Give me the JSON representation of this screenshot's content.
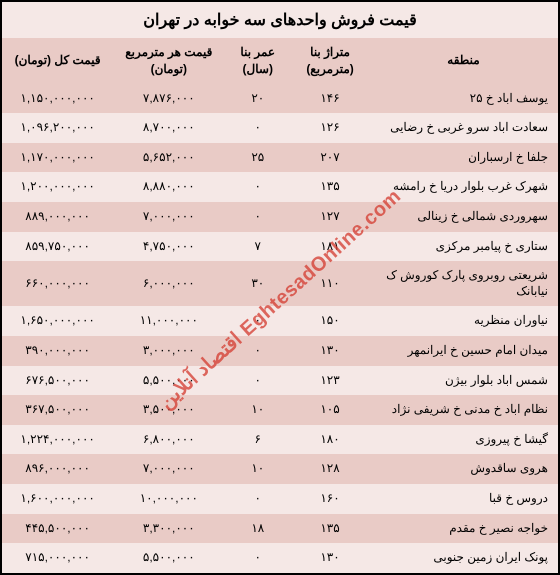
{
  "title": "قیمت فروش واحدهای سه خوابه در تهران",
  "watermark": "EghtesadOnline.com اقتصاد آنلاین",
  "colors": {
    "row_odd": "#e9cbc6",
    "row_even": "#f5e8e6",
    "border": "#000000",
    "text": "#000000",
    "watermark": "#d43a2f",
    "background": "#ffffff"
  },
  "typography": {
    "title_fontsize": 16,
    "header_fontsize": 12,
    "cell_fontsize": 12,
    "font_family": "Tahoma"
  },
  "columns": [
    {
      "key": "region",
      "label": "منطقه",
      "width_pct": 34,
      "align": "right"
    },
    {
      "key": "area",
      "label": "متراژ بنا\n(مترمربع)",
      "width_pct": 14,
      "align": "center"
    },
    {
      "key": "age",
      "label": "عمر بنا\n(سال)",
      "width_pct": 12,
      "align": "center"
    },
    {
      "key": "ppm",
      "label": "قیمت هر مترمربع\n(تومان)",
      "width_pct": 20,
      "align": "center"
    },
    {
      "key": "total",
      "label": "قیمت کل (تومان)",
      "width_pct": 20,
      "align": "center"
    }
  ],
  "rows": [
    {
      "region": "یوسف اباد خ ۲۵",
      "area": "۱۴۶",
      "age": "۲۰",
      "ppm": "۷,۸۷۶,۰۰۰",
      "total": "۱,۱۵۰,۰۰۰,۰۰۰"
    },
    {
      "region": "سعادت اباد سرو غربی خ رضایی",
      "area": "۱۲۶",
      "age": "۰",
      "ppm": "۸,۷۰۰,۰۰۰",
      "total": "۱,۰۹۶,۲۰۰,۰۰۰"
    },
    {
      "region": "جلفا خ ارسباران",
      "area": "۲۰۷",
      "age": "۲۵",
      "ppm": "۵,۶۵۲,۰۰۰",
      "total": "۱,۱۷۰,۰۰۰,۰۰۰"
    },
    {
      "region": "شهرک غرب بلوار دریا خ رامشه",
      "area": "۱۳۵",
      "age": "۰",
      "ppm": "۸,۸۸۰,۰۰۰",
      "total": "۱,۲۰۰,۰۰۰,۰۰۰"
    },
    {
      "region": "سهروردی شمالی خ زینالی",
      "area": "۱۲۷",
      "age": "۰",
      "ppm": "۷,۰۰۰,۰۰۰",
      "total": "۸۸۹,۰۰۰,۰۰۰"
    },
    {
      "region": "ستاری خ پیامبر مرکزی",
      "area": "۱۸۱",
      "age": "۷",
      "ppm": "۴,۷۵۰,۰۰۰",
      "total": "۸۵۹,۷۵۰,۰۰۰"
    },
    {
      "region": "شریعتی روبروی پارک کوروش ک نیابانک",
      "area": "۱۱۰",
      "age": "۳۰",
      "ppm": "۶,۰۰۰,۰۰۰",
      "total": "۶۶۰,۰۰۰,۰۰۰"
    },
    {
      "region": "نیاوران منظریه",
      "area": "۱۵۰",
      "age": "۰",
      "ppm": "۱۱,۰۰۰,۰۰۰",
      "total": "۱,۶۵۰,۰۰۰,۰۰۰"
    },
    {
      "region": "میدان امام حسین خ ایرانمهر",
      "area": "۱۳۰",
      "age": "۰",
      "ppm": "۳,۰۰۰,۰۰۰",
      "total": "۳۹۰,۰۰۰,۰۰۰"
    },
    {
      "region": "شمس اباد بلوار بیژن",
      "area": "۱۲۳",
      "age": "۰",
      "ppm": "۵,۵۰۰,۰۰۰",
      "total": "۶۷۶,۵۰۰,۰۰۰"
    },
    {
      "region": "نظام اباد خ مدنی خ شریفی نژاد",
      "area": "۱۰۵",
      "age": "۱۰",
      "ppm": "۳,۵۰۰,۰۰۰",
      "total": "۳۶۷,۵۰۰,۰۰۰"
    },
    {
      "region": "گیشا خ پیروزی",
      "area": "۱۸۰",
      "age": "۶",
      "ppm": "۶,۸۰۰,۰۰۰",
      "total": "۱,۲۲۴,۰۰۰,۰۰۰"
    },
    {
      "region": "هروی ساقدوش",
      "area": "۱۲۸",
      "age": "۱۰",
      "ppm": "۷,۰۰۰,۰۰۰",
      "total": "۸۹۶,۰۰۰,۰۰۰"
    },
    {
      "region": "دروس خ قبا",
      "area": "۱۶۰",
      "age": "۰",
      "ppm": "۱۰,۰۰۰,۰۰۰",
      "total": "۱,۶۰۰,۰۰۰,۰۰۰"
    },
    {
      "region": "خواجه نصیر خ مقدم",
      "area": "۱۳۵",
      "age": "۱۸",
      "ppm": "۳,۳۰۰,۰۰۰",
      "total": "۴۴۵,۵۰۰,۰۰۰"
    },
    {
      "region": "پونک ایران زمین جنوبی",
      "area": "۱۳۰",
      "age": "۰",
      "ppm": "۵,۵۰۰,۰۰۰",
      "total": "۷۱۵,۰۰۰,۰۰۰"
    }
  ]
}
